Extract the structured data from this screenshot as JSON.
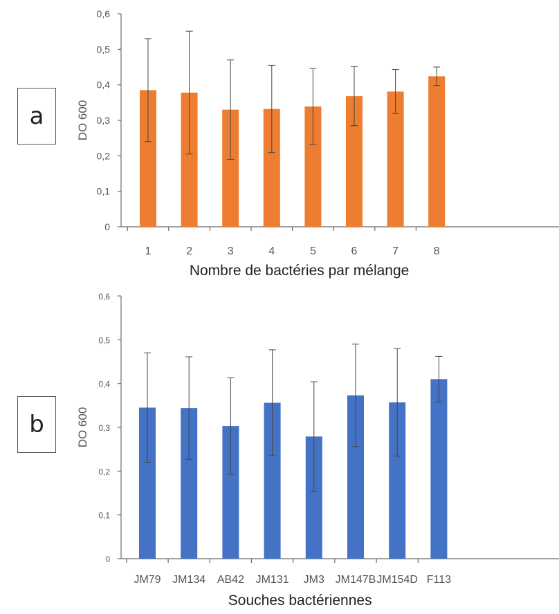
{
  "panels": [
    {
      "letter": "a"
    },
    {
      "letter": "b"
    }
  ],
  "chart_data": [
    {
      "type": "bar",
      "ylabel": "DO 600",
      "xlabel": "Nombre de bactéries par mélange",
      "categories": [
        "1",
        "2",
        "3",
        "4",
        "5",
        "6",
        "7",
        "8"
      ],
      "values": [
        0.385,
        0.378,
        0.33,
        0.332,
        0.339,
        0.368,
        0.381,
        0.424
      ],
      "errors": [
        0.145,
        0.173,
        0.14,
        0.123,
        0.107,
        0.083,
        0.062,
        0.026
      ],
      "ylim": [
        0,
        0.6
      ],
      "yticks": [
        "0",
        "0,1",
        "0,2",
        "0,3",
        "0,4",
        "0,5",
        "0,6"
      ],
      "color": "#ED7D31",
      "grid": false,
      "legend": "none"
    },
    {
      "type": "bar",
      "ylabel": "DO 600",
      "xlabel": "Souches bactériennes",
      "categories": [
        "JM79",
        "JM134",
        "AB42",
        "JM131",
        "JM3",
        "JM147B",
        "JM154D",
        "F113"
      ],
      "values": [
        0.345,
        0.344,
        0.303,
        0.356,
        0.279,
        0.373,
        0.357,
        0.41
      ],
      "errors": [
        0.125,
        0.117,
        0.11,
        0.121,
        0.125,
        0.117,
        0.123,
        0.052
      ],
      "ylim": [
        0,
        0.6
      ],
      "yticks": [
        "0",
        "0,1",
        "0,2",
        "0,3",
        "0,4",
        "0,5",
        "0,6"
      ],
      "color": "#4472C4",
      "grid": false,
      "legend": "none"
    }
  ]
}
